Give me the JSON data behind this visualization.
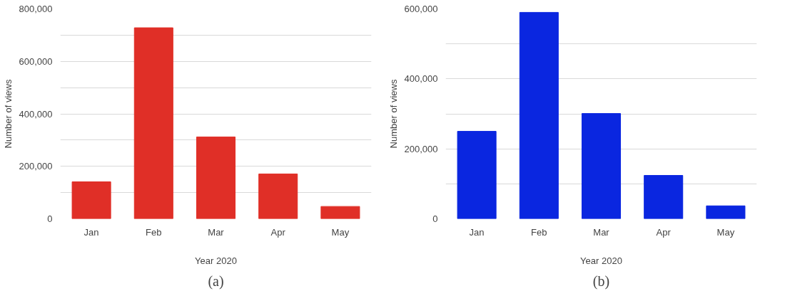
{
  "chart_data": [
    {
      "type": "bar",
      "title": "(a)",
      "xlabel": "Year 2020",
      "ylabel": "Number of views",
      "categories": [
        "Jan",
        "Feb",
        "Mar",
        "Apr",
        "May"
      ],
      "series": [
        {
          "color": "#e02f27",
          "values": [
            141000,
            728000,
            312000,
            171000,
            47000
          ]
        }
      ],
      "ylim": [
        0,
        800000
      ],
      "yticks": [
        0,
        {
          "value": 100000,
          "label": null
        },
        {
          "value": 200000,
          "label": "200,000"
        },
        {
          "value": 300000,
          "label": null
        },
        {
          "value": 400000,
          "label": "400,000"
        },
        {
          "value": 500000,
          "label": null
        },
        {
          "value": 600000,
          "label": "600,000"
        },
        {
          "value": 700000,
          "label": null
        },
        {
          "value": 800000,
          "label": "800,000"
        }
      ],
      "grid": "y"
    },
    {
      "type": "bar",
      "title": "(b)",
      "xlabel": "Year 2020",
      "ylabel": "Number of views",
      "categories": [
        "Jan",
        "Feb",
        "Mar",
        "Apr",
        "May"
      ],
      "series": [
        {
          "color": "#0a26e0",
          "values": [
            250000,
            590000,
            301000,
            124000,
            37000
          ]
        }
      ],
      "ylim": [
        0,
        600000
      ],
      "yticks": [
        0,
        {
          "value": 100000,
          "label": null
        },
        {
          "value": 200000,
          "label": "200,000"
        },
        {
          "value": 300000,
          "label": null
        },
        {
          "value": 400000,
          "label": "400,000"
        },
        {
          "value": 500000,
          "label": null
        },
        {
          "value": 600000,
          "label": "600,000"
        }
      ],
      "grid": "y"
    }
  ]
}
